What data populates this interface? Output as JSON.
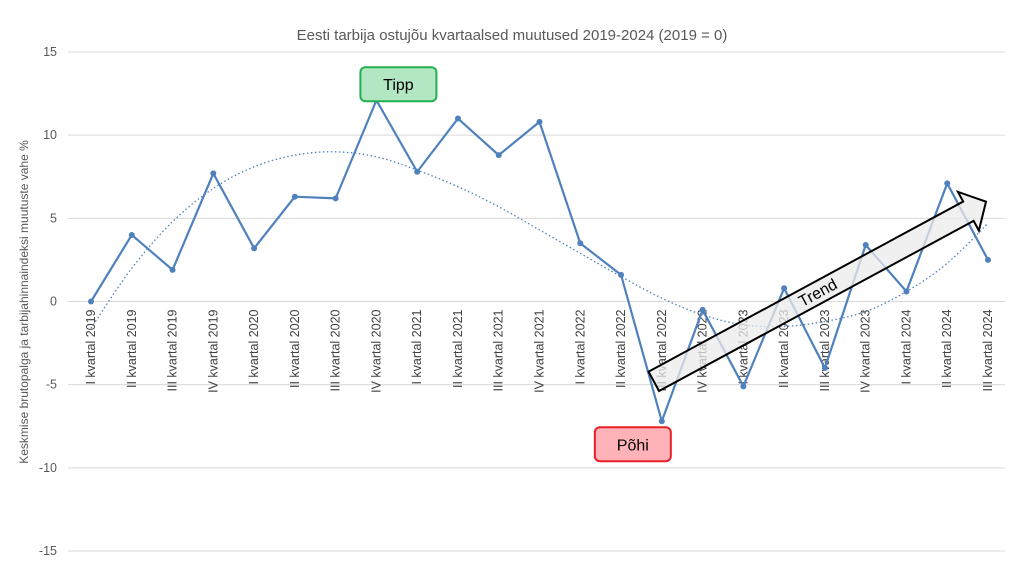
{
  "chart_data": {
    "type": "line",
    "title": "Eesti tarbija ostujõu kvartaalsed muutused 2019-2024 (2019 = 0)",
    "ylabel": "Keskmise brutopalga ja tarbijahinnaindeksi muutuste vahe %",
    "xlabel": "",
    "ylim": [
      -15,
      15
    ],
    "yticks": [
      15,
      10,
      5,
      0,
      -5,
      -10,
      -15
    ],
    "grid": true,
    "categories": [
      "I kvartal 2019",
      "II kvartal 2019",
      "III kvartal 2019",
      "IV kvartal 2019",
      "I kvartal 2020",
      "II kvartal 2020",
      "III kvartal 2020",
      "IV kvartal 2020",
      "I kvartal 2021",
      "II kvartal 2021",
      "III kvartal 2021",
      "IV kvartal 2021",
      "I kvartal 2022",
      "II kvartal 2022",
      "III kvartal 2022",
      "IV kvartal 2022",
      "I kvartal 2023",
      "II kvartal 2023",
      "III kvartal 2023",
      "IV kvartal 2023",
      "I kvartal 2024",
      "II kvartal 2024",
      "III kvartal 2024"
    ],
    "series": [
      {
        "values": [
          0.0,
          4.0,
          1.9,
          7.7,
          3.2,
          6.3,
          6.2,
          12.1,
          7.8,
          11.0,
          8.8,
          10.8,
          3.5,
          1.6,
          -7.2,
          -0.5,
          -5.1,
          0.8,
          -4.0,
          3.4,
          0.6,
          7.1,
          2.5
        ],
        "color": "#4f81bd"
      }
    ],
    "trendline": {
      "type": "polynomial",
      "style": "dotted",
      "color": "#4f81bd",
      "values": [
        -1.6,
        2.0,
        4.8,
        6.8,
        8.1,
        8.8,
        9.0,
        8.7,
        7.9,
        6.9,
        5.7,
        4.3,
        2.9,
        1.5,
        0.2,
        -0.8,
        -1.4,
        -1.5,
        -1.2,
        -0.6,
        0.6,
        2.3,
        4.7
      ]
    },
    "annotations": {
      "peak": {
        "label": "Tipp",
        "category_index": 7,
        "fill": "#b3e6c3",
        "stroke": "#22b14c"
      },
      "trough": {
        "label": "Põhi",
        "category_index": 14,
        "fill": "#ffb3b8",
        "stroke": "#e8202a"
      },
      "trend_arrow": {
        "label": "Trend",
        "from_index": 14,
        "to_index": 22
      }
    }
  }
}
